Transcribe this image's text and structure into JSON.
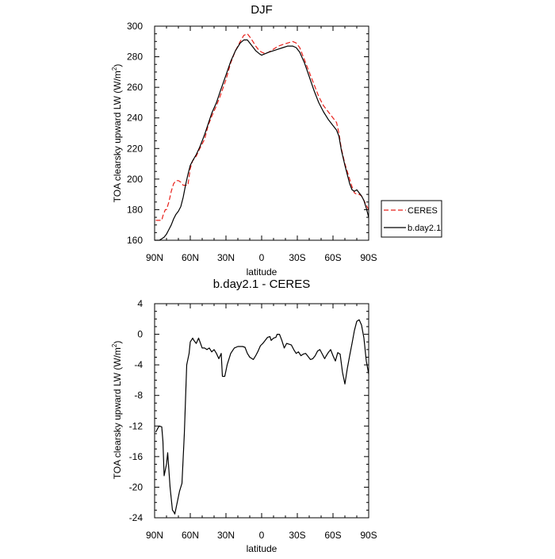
{
  "chart_data": [
    {
      "type": "line",
      "title": "DJF",
      "xlabel": "latitude",
      "ylabel": "TOA clearsky upward LW (W/m",
      "ylabel_superscript": "2",
      "ylabel_close": ")",
      "xlim": [
        -90,
        90
      ],
      "ylim": [
        160,
        300
      ],
      "xticks": [
        {
          "value": -90,
          "label": "90N"
        },
        {
          "value": -60,
          "label": "60N"
        },
        {
          "value": -30,
          "label": "30N"
        },
        {
          "value": 0,
          "label": "0"
        },
        {
          "value": 30,
          "label": "30S"
        },
        {
          "value": 60,
          "label": "60S"
        },
        {
          "value": 90,
          "label": "90S"
        }
      ],
      "yticks": [
        160,
        180,
        200,
        220,
        240,
        260,
        280,
        300
      ],
      "legend_position": "right",
      "series": [
        {
          "name": "CERES",
          "color": "#e8201a",
          "dash": "dashed",
          "x": [
            -89,
            -86,
            -84,
            -83,
            -81,
            -80,
            -78,
            -76,
            -74,
            -72,
            -70,
            -68,
            -66,
            -64,
            -62,
            -60,
            -58,
            -55,
            -52,
            -48,
            -45,
            -42,
            -38,
            -35,
            -30,
            -26,
            -22,
            -18,
            -15,
            -12,
            -9,
            -5,
            -2,
            0,
            3,
            6,
            10,
            14,
            18,
            22,
            26,
            29,
            32,
            36,
            40,
            44,
            48,
            52,
            56,
            60,
            63,
            65,
            67,
            70,
            72,
            74,
            76,
            78,
            80,
            82,
            84,
            86,
            88,
            90
          ],
          "y": [
            173,
            173,
            173,
            176,
            180,
            180,
            185,
            192,
            197,
            199,
            199,
            198,
            196,
            196,
            196,
            207,
            212,
            215,
            220,
            226,
            235,
            241,
            248,
            254,
            265,
            276,
            284,
            290,
            294,
            295,
            292,
            287,
            284,
            283,
            282,
            283,
            285,
            287,
            288,
            289,
            290,
            289,
            286,
            278,
            270,
            262,
            254,
            248,
            244,
            240,
            237,
            230,
            220,
            210,
            205,
            200,
            195,
            191,
            190,
            190,
            189,
            186,
            183,
            180
          ]
        },
        {
          "name": "b.day2.1",
          "color": "#000000",
          "dash": "solid",
          "x": [
            -90,
            -86,
            -84,
            -82,
            -80,
            -78,
            -76,
            -74,
            -72,
            -70,
            -68,
            -66,
            -64,
            -62,
            -60,
            -58,
            -55,
            -52,
            -48,
            -45,
            -42,
            -38,
            -35,
            -30,
            -26,
            -22,
            -18,
            -15,
            -12,
            -9,
            -5,
            -2,
            0,
            3,
            6,
            10,
            14,
            18,
            22,
            26,
            29,
            32,
            36,
            40,
            44,
            48,
            52,
            56,
            60,
            63,
            65,
            67,
            70,
            72,
            74,
            76,
            78,
            80,
            82,
            84,
            86,
            88,
            90
          ],
          "y": [
            160,
            160,
            161,
            162,
            164,
            167,
            170,
            174,
            177,
            179,
            182,
            188,
            196,
            203,
            209,
            212,
            216,
            221,
            229,
            236,
            243,
            250,
            257,
            268,
            277,
            284,
            289,
            291,
            291,
            288,
            284,
            282,
            281,
            282,
            283,
            284,
            285,
            286,
            287,
            287,
            286,
            283,
            276,
            267,
            258,
            250,
            244,
            239,
            235,
            232,
            228,
            219,
            209,
            203,
            197,
            193,
            192,
            193,
            191,
            189,
            186,
            181,
            175
          ]
        }
      ]
    },
    {
      "type": "line",
      "title": "b.day2.1 - CERES",
      "xlabel": "latitude",
      "ylabel": "TOA clearsky upward LW (W/m",
      "ylabel_superscript": "2",
      "ylabel_close": ")",
      "xlim": [
        -90,
        90
      ],
      "ylim": [
        -24,
        4
      ],
      "xticks": [
        {
          "value": -90,
          "label": "90N"
        },
        {
          "value": -60,
          "label": "60N"
        },
        {
          "value": -30,
          "label": "30N"
        },
        {
          "value": 0,
          "label": "0"
        },
        {
          "value": 30,
          "label": "30S"
        },
        {
          "value": 60,
          "label": "60S"
        },
        {
          "value": 90,
          "label": "90S"
        }
      ],
      "yticks": [
        -24,
        -20,
        -16,
        -12,
        -8,
        -4,
        0,
        4
      ],
      "series": [
        {
          "color": "#000000",
          "dash": "solid",
          "x": [
            -89,
            -87,
            -86,
            -84,
            -83,
            -82,
            -80,
            -79,
            -77,
            -75,
            -74,
            -73,
            -71,
            -69,
            -67,
            -65,
            -63,
            -61,
            -60,
            -58,
            -57,
            -55,
            -53,
            -50,
            -48,
            -46,
            -44,
            -42,
            -40,
            -38,
            -36,
            -34,
            -33,
            -31,
            -29,
            -26,
            -23,
            -20,
            -18,
            -16,
            -14,
            -12,
            -10,
            -7,
            -5,
            -3,
            -1,
            1,
            3,
            5,
            7,
            8,
            10,
            12,
            13,
            15,
            17,
            19,
            21,
            23,
            25,
            27,
            29,
            31,
            33,
            35,
            37,
            39,
            41,
            43,
            45,
            47,
            49,
            51,
            53,
            54,
            56,
            58,
            60,
            62,
            64,
            66,
            68,
            70,
            72,
            74,
            76,
            78,
            80,
            82,
            84,
            86,
            88,
            90
          ],
          "y": [
            -12.8,
            -12.2,
            -12,
            -12.1,
            -14,
            -18.5,
            -17,
            -15.5,
            -20,
            -23,
            -23.2,
            -23.5,
            -22,
            -20.5,
            -19.5,
            -13,
            -4,
            -2.5,
            -1,
            -0.5,
            -0.8,
            -1.2,
            -0.5,
            -1.8,
            -1.8,
            -2,
            -1.8,
            -2.3,
            -2,
            -2.5,
            -3.2,
            -2.5,
            -5.5,
            -5.5,
            -4,
            -2.5,
            -1.8,
            -1.6,
            -1.6,
            -1.6,
            -1.7,
            -2.5,
            -3,
            -3.3,
            -2.8,
            -2.2,
            -1.5,
            -1.2,
            -0.8,
            -0.4,
            -0.3,
            -0.8,
            -0.5,
            -0.4,
            0,
            0,
            -0.8,
            -1.8,
            -1.2,
            -1.3,
            -1.4,
            -2,
            -2.5,
            -2.3,
            -2.8,
            -2.6,
            -2.5,
            -2.9,
            -3.3,
            -3.2,
            -2.8,
            -2.2,
            -2,
            -2.6,
            -3.2,
            -2.9,
            -2.4,
            -2,
            -2.8,
            -3.5,
            -2.4,
            -2.6,
            -5,
            -6.5,
            -4.5,
            -2.8,
            -1.2,
            0.5,
            1.7,
            1.9,
            1.2,
            -0.5,
            -3.5,
            -5.2
          ]
        }
      ]
    }
  ]
}
